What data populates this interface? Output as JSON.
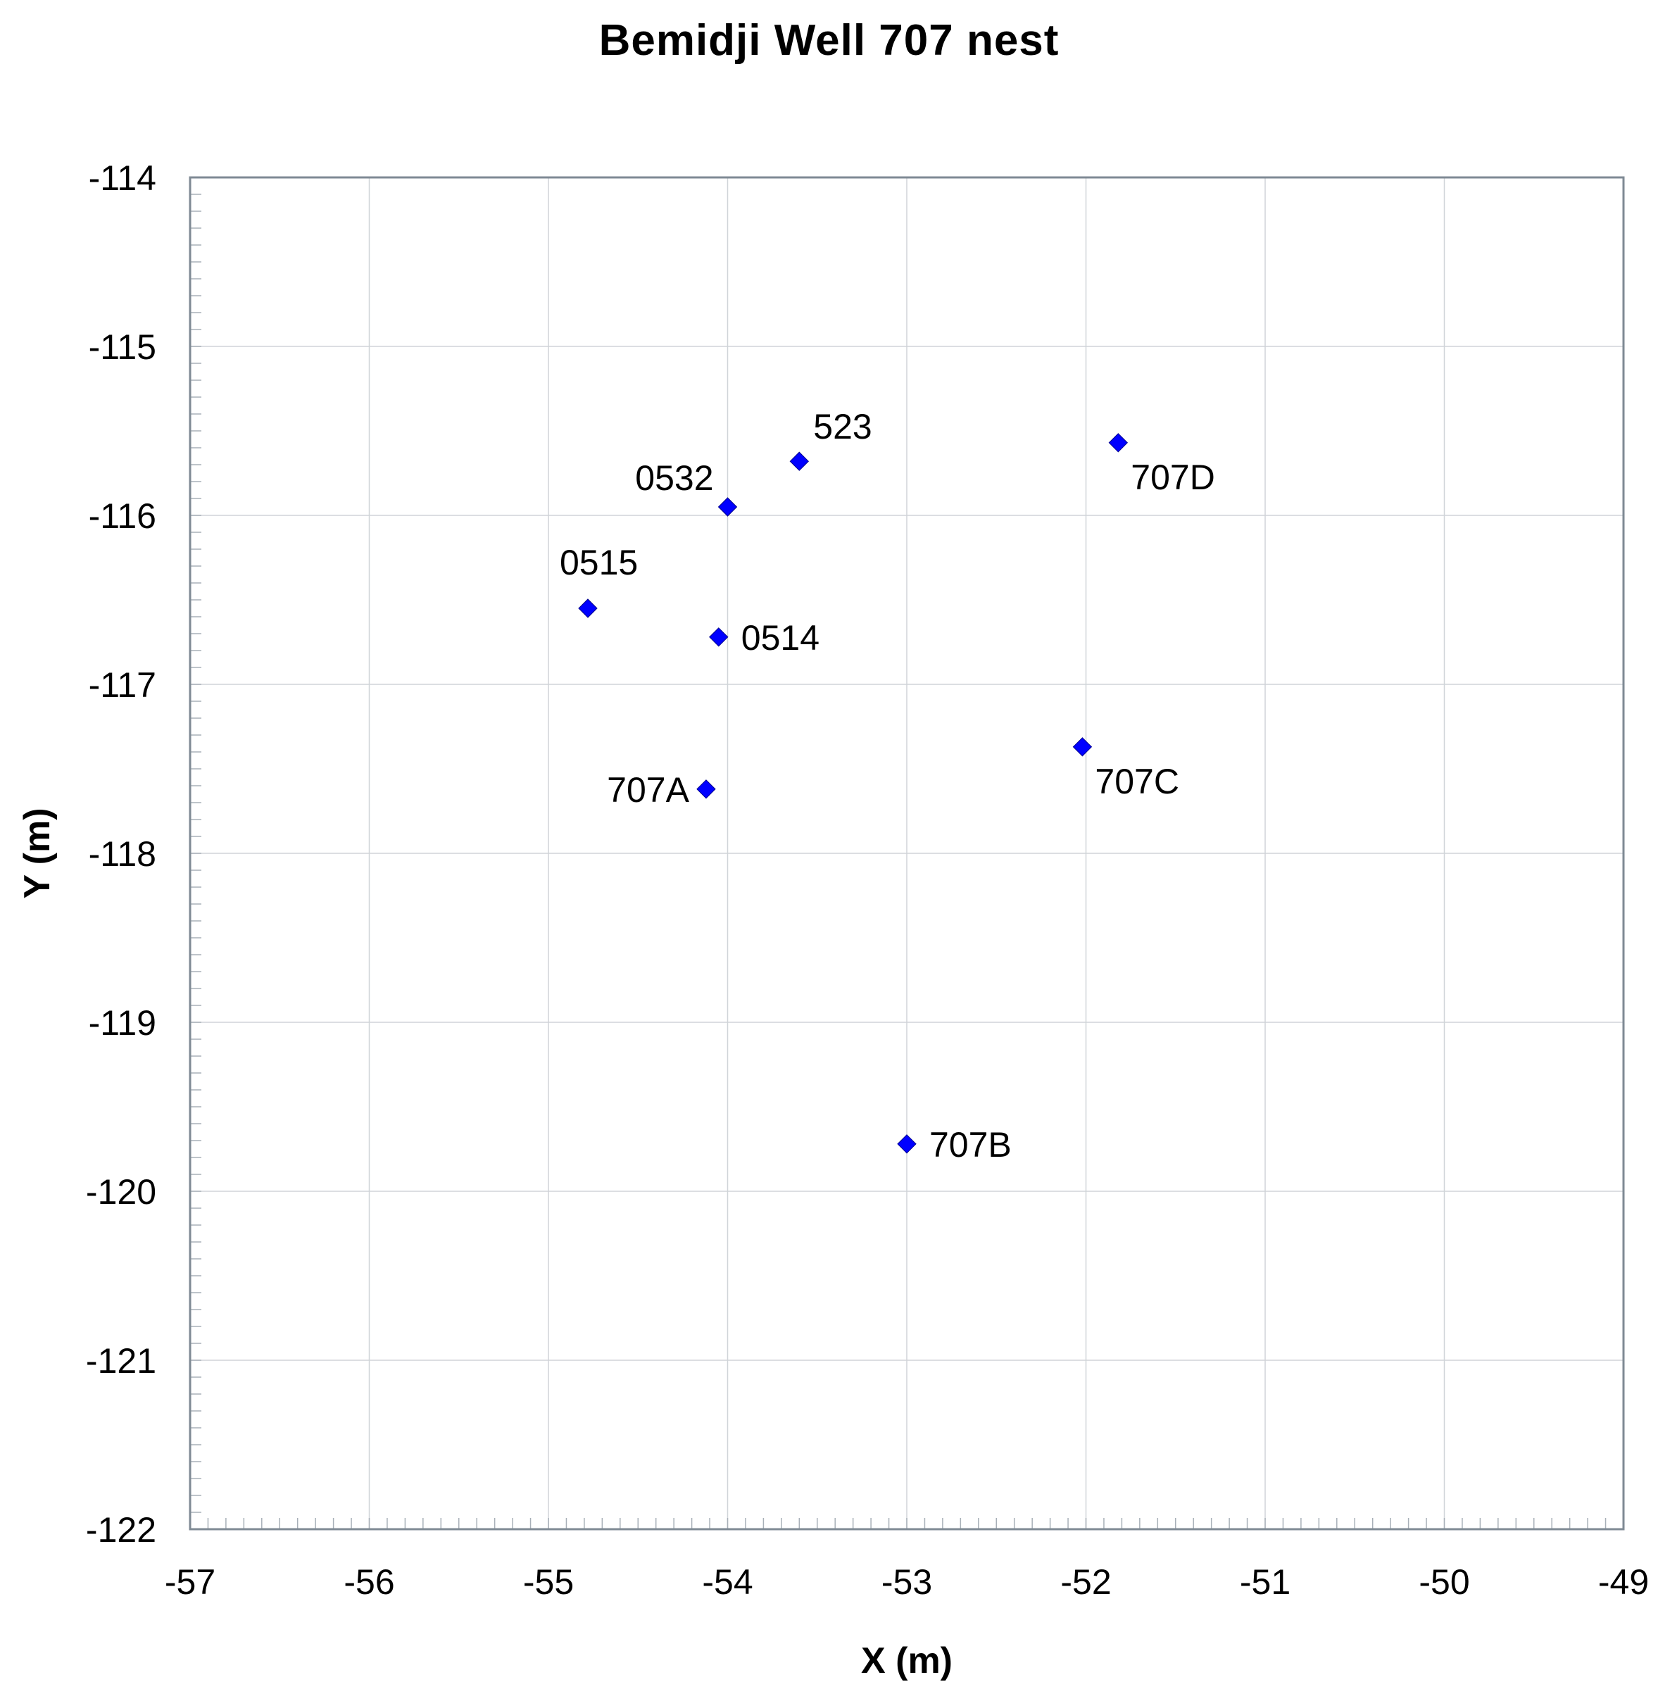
{
  "chart_data": {
    "type": "scatter",
    "title": "Bemidji Well 707 nest",
    "xlabel": "X (m)",
    "ylabel": "Y (m)",
    "xlim": [
      -57,
      -49
    ],
    "ylim": [
      -122,
      -114
    ],
    "xticks": [
      "-57",
      "-56",
      "-55",
      "-54",
      "-53",
      "-52",
      "-51",
      "-50",
      "-49"
    ],
    "yticks": [
      "-114",
      "-115",
      "-116",
      "-117",
      "-118",
      "-119",
      "-120",
      "-121",
      "-122"
    ],
    "grid": true,
    "marker_color": "#0000ff",
    "points": [
      {
        "label": "523",
        "x": -53.6,
        "y": -115.68,
        "label_pos": "upper-right"
      },
      {
        "label": "707D",
        "x": -51.82,
        "y": -115.57,
        "label_pos": "lower-right"
      },
      {
        "label": "0532",
        "x": -54.0,
        "y": -115.95,
        "label_pos": "upper-left"
      },
      {
        "label": "0515",
        "x": -54.78,
        "y": -116.55,
        "label_pos": "above"
      },
      {
        "label": "0514",
        "x": -54.05,
        "y": -116.72,
        "label_pos": "right"
      },
      {
        "label": "707C",
        "x": -52.02,
        "y": -117.37,
        "label_pos": "lower-right"
      },
      {
        "label": "707A",
        "x": -54.12,
        "y": -117.62,
        "label_pos": "left"
      },
      {
        "label": "707B",
        "x": -53.0,
        "y": -119.72,
        "label_pos": "right"
      }
    ]
  }
}
